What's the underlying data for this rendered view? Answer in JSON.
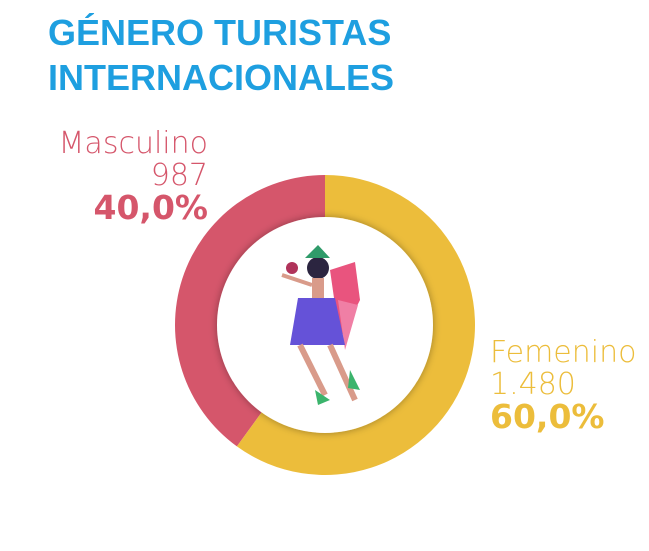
{
  "chart_data": {
    "type": "donut",
    "title": [
      "GÉNERO TURISTAS",
      "INTERNACIONALES"
    ],
    "categories": [
      "Masculino",
      "Femenino"
    ],
    "values": [
      987,
      1480
    ],
    "value_labels": [
      "987",
      "1.480"
    ],
    "percentages": [
      40.0,
      60.0
    ],
    "percentage_labels": [
      "40,0%",
      "60,0%"
    ],
    "colors": [
      "#d5566b",
      "#ecbd3b"
    ]
  }
}
